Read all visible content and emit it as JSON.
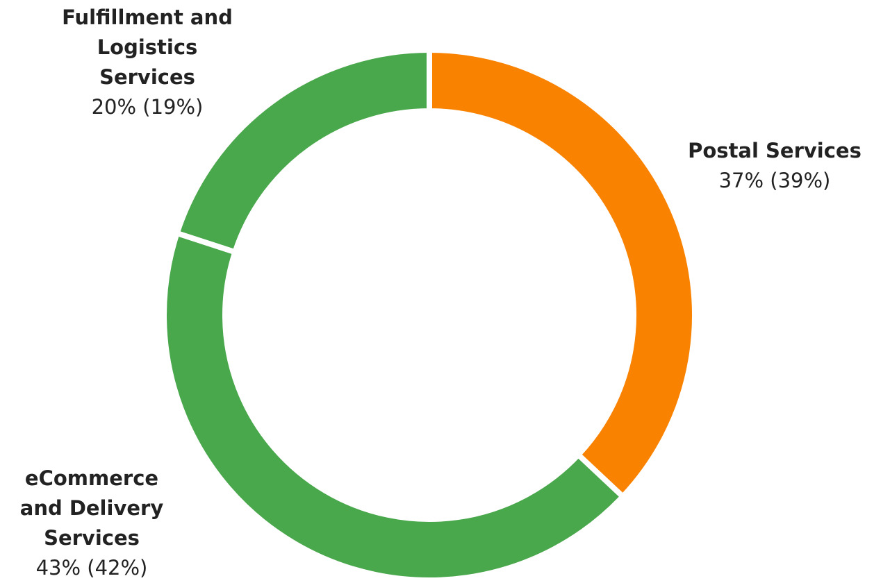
{
  "chart_data": {
    "type": "donut",
    "categories": [
      "Postal Services",
      "eCommerce and Delivery Services",
      "Fulfillment and Logistics Services"
    ],
    "values": [
      37,
      43,
      20
    ],
    "value_labels": [
      "37% (39%)",
      "43% (42%)",
      "20% (19%)"
    ],
    "colors": [
      "#f98200",
      "#4aa84c",
      "#4aa84c"
    ]
  }
}
